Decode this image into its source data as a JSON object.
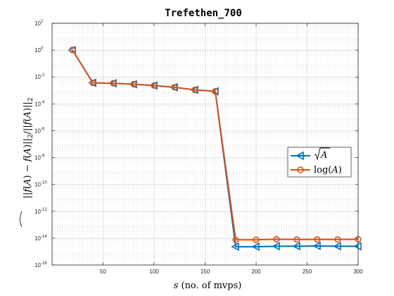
{
  "chart_data": {
    "type": "line",
    "title": "Trefethen_700",
    "xlabel": "s (no. of mvps)",
    "ylabel": "||f(A)~ − f(A)||₂/||f(A)||₂",
    "xlim": [
      0,
      300
    ],
    "ylim_log10": [
      -16,
      2
    ],
    "yscale": "log",
    "grid": true,
    "legend_location": "right-middle",
    "x_ticks": [
      50,
      100,
      150,
      200,
      250,
      300
    ],
    "y_ticks_log10": [
      -16,
      -14,
      -12,
      -10,
      -8,
      -6,
      -4,
      -2,
      0,
      2
    ],
    "y_tick_base": "10",
    "series": [
      {
        "name": "√A",
        "legend_label": "√A",
        "color": "#0072BD",
        "marker": "triangle-left",
        "x": [
          20,
          40,
          60,
          80,
          100,
          120,
          140,
          160,
          180,
          200,
          220,
          240,
          260,
          280,
          300
        ],
        "y": [
          1.0,
          0.0037,
          0.0034,
          0.0029,
          0.0023,
          0.0017,
          0.0011,
          0.00085,
          2.3e-15,
          2.3e-15,
          2.5e-15,
          2.5e-15,
          2.6e-15,
          2.5e-15,
          2.5e-15
        ]
      },
      {
        "name": "log(A)",
        "legend_label": "log(A)",
        "color": "#D95319",
        "marker": "circle",
        "x": [
          20,
          40,
          60,
          80,
          100,
          120,
          140,
          160,
          180,
          200,
          220,
          240,
          260,
          280,
          300
        ],
        "y": [
          1.05,
          0.0037,
          0.0034,
          0.0029,
          0.0023,
          0.0017,
          0.0011,
          0.00085,
          7.5e-15,
          7.6e-15,
          8.2e-15,
          7.9e-15,
          7.9e-15,
          7.9e-15,
          8.1e-15
        ]
      }
    ]
  }
}
